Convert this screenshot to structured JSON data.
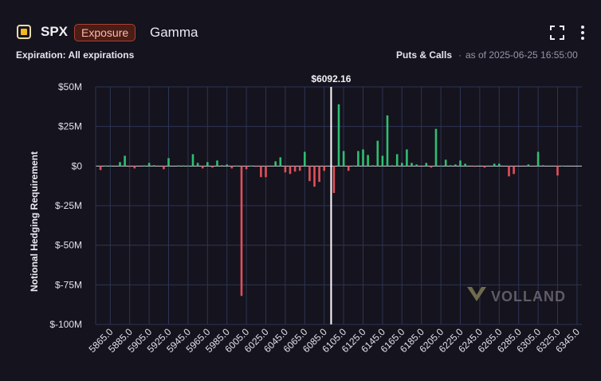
{
  "header": {
    "symbol": "SPX",
    "tag": "Exposure",
    "tab": "Gamma",
    "icons": [
      "fullscreen-icon",
      "more-vertical-icon"
    ]
  },
  "subheader": {
    "expiration": "Expiration: All expirations",
    "puts_calls": "Puts & Calls",
    "separator": "·",
    "as_of": "as of 2025-06-25 16:55:00"
  },
  "watermark": "VOLLAND",
  "colors": {
    "positive": "#2fbf71",
    "negative": "#e0505a",
    "spot_line": "#ffffff",
    "tag_border": "#a8432f",
    "symbol_icon": "#f2b81c"
  },
  "chart_data": {
    "type": "bar",
    "ylabel": "Notional Hedging Requirement",
    "ylim": [
      -100,
      50
    ],
    "yunit": "M",
    "yticks": [
      50,
      25,
      0,
      -25,
      -50,
      -75,
      -100
    ],
    "ytick_labels": [
      "$50M",
      "$25M",
      "$0",
      "$-25M",
      "$-50M",
      "$-75M",
      "$-100M"
    ],
    "xlim": [
      5850,
      6350
    ],
    "xticks": [
      "5865.0",
      "5885.0",
      "5905.0",
      "5925.0",
      "5945.0",
      "5965.0",
      "5985.0",
      "6005.0",
      "6025.0",
      "6045.0",
      "6065.0",
      "6085.0",
      "6105.0",
      "6125.0",
      "6145.0",
      "6165.0",
      "6185.0",
      "6205.0",
      "6225.0",
      "6245.0",
      "6265.0",
      "6285.0",
      "6305.0",
      "6325.0",
      "6345.0"
    ],
    "spot": 6092.16,
    "spot_label": "$6092.16",
    "grid": true,
    "bars": [
      {
        "x": 5855,
        "y": -2.5
      },
      {
        "x": 5860,
        "y": 0.3
      },
      {
        "x": 5865,
        "y": 0.3
      },
      {
        "x": 5875,
        "y": 2.5
      },
      {
        "x": 5880,
        "y": 6.5
      },
      {
        "x": 5885,
        "y": -0.5
      },
      {
        "x": 5890,
        "y": -1.5
      },
      {
        "x": 5900,
        "y": 0.4
      },
      {
        "x": 5905,
        "y": 2
      },
      {
        "x": 5910,
        "y": 0.5
      },
      {
        "x": 5920,
        "y": -2
      },
      {
        "x": 5925,
        "y": 5
      },
      {
        "x": 5935,
        "y": 0.4
      },
      {
        "x": 5940,
        "y": 0.4
      },
      {
        "x": 5945,
        "y": 0.3
      },
      {
        "x": 5950,
        "y": 7.5
      },
      {
        "x": 5955,
        "y": 2
      },
      {
        "x": 5960,
        "y": -1.5
      },
      {
        "x": 5965,
        "y": 2.5
      },
      {
        "x": 5970,
        "y": -1
      },
      {
        "x": 5975,
        "y": 3.5
      },
      {
        "x": 5980,
        "y": 0.5
      },
      {
        "x": 5985,
        "y": 1
      },
      {
        "x": 5990,
        "y": -1.5
      },
      {
        "x": 5995,
        "y": 0.3
      },
      {
        "x": 6000,
        "y": -82
      },
      {
        "x": 6005,
        "y": -2
      },
      {
        "x": 6010,
        "y": 0.3
      },
      {
        "x": 6015,
        "y": -0.5
      },
      {
        "x": 6020,
        "y": -7
      },
      {
        "x": 6025,
        "y": -7
      },
      {
        "x": 6035,
        "y": 3
      },
      {
        "x": 6040,
        "y": 5.5
      },
      {
        "x": 6045,
        "y": -4
      },
      {
        "x": 6050,
        "y": -5
      },
      {
        "x": 6055,
        "y": -3.5
      },
      {
        "x": 6060,
        "y": -3
      },
      {
        "x": 6065,
        "y": 9
      },
      {
        "x": 6070,
        "y": -9.5
      },
      {
        "x": 6075,
        "y": -13
      },
      {
        "x": 6080,
        "y": -10
      },
      {
        "x": 6085,
        "y": -3
      },
      {
        "x": 6095,
        "y": -17
      },
      {
        "x": 6100,
        "y": 39
      },
      {
        "x": 6105,
        "y": 9.5
      },
      {
        "x": 6110,
        "y": -3
      },
      {
        "x": 6115,
        "y": 0.3
      },
      {
        "x": 6120,
        "y": 9.5
      },
      {
        "x": 6125,
        "y": 10.5
      },
      {
        "x": 6130,
        "y": 7
      },
      {
        "x": 6135,
        "y": 0.5
      },
      {
        "x": 6140,
        "y": 16
      },
      {
        "x": 6145,
        "y": 6.5
      },
      {
        "x": 6150,
        "y": 32
      },
      {
        "x": 6155,
        "y": 0.5
      },
      {
        "x": 6160,
        "y": 7.5
      },
      {
        "x": 6165,
        "y": 2
      },
      {
        "x": 6170,
        "y": 10.5
      },
      {
        "x": 6175,
        "y": 2
      },
      {
        "x": 6180,
        "y": 1
      },
      {
        "x": 6190,
        "y": 2
      },
      {
        "x": 6195,
        "y": -1
      },
      {
        "x": 6200,
        "y": 23.5
      },
      {
        "x": 6205,
        "y": 0.3
      },
      {
        "x": 6210,
        "y": 4
      },
      {
        "x": 6215,
        "y": 0.5
      },
      {
        "x": 6220,
        "y": 1
      },
      {
        "x": 6225,
        "y": 3.5
      },
      {
        "x": 6230,
        "y": 1.5
      },
      {
        "x": 6240,
        "y": -0.5
      },
      {
        "x": 6250,
        "y": -1
      },
      {
        "x": 6260,
        "y": 1.5
      },
      {
        "x": 6265,
        "y": 1.5
      },
      {
        "x": 6275,
        "y": -6.5
      },
      {
        "x": 6280,
        "y": -5
      },
      {
        "x": 6295,
        "y": 1
      },
      {
        "x": 6305,
        "y": 9
      },
      {
        "x": 6310,
        "y": 0.5
      },
      {
        "x": 6325,
        "y": -6
      },
      {
        "x": 6330,
        "y": 0.3
      }
    ]
  }
}
